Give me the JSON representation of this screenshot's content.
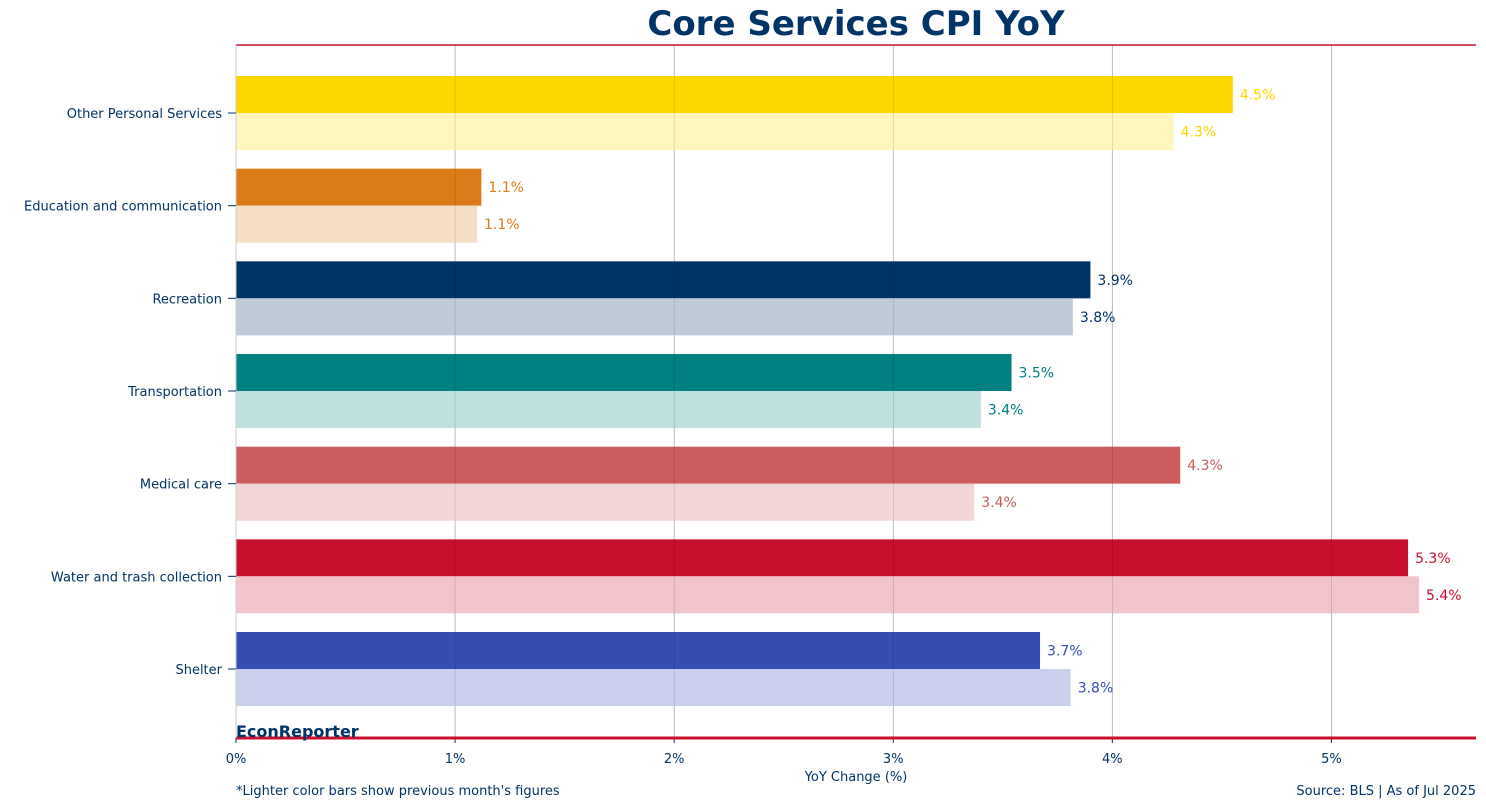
{
  "chart_data": {
    "type": "bar",
    "orientation": "horizontal",
    "title": "Core Services CPI YoY",
    "xlabel": "YoY Change (%)",
    "ylabel": "",
    "xlim": [
      0,
      5.66
    ],
    "x_ticks": [
      "0%",
      "1%",
      "2%",
      "3%",
      "4%",
      "5%"
    ],
    "grid": "vertical",
    "categories": [
      "Shelter",
      "Water and trash collection",
      "Medical care",
      "Transportation",
      "Recreation",
      "Education and communication",
      "Other Personal Services"
    ],
    "series": [
      {
        "role": "current",
        "values": [
          3.67,
          5.35,
          4.31,
          3.54,
          3.9,
          1.12,
          4.55
        ],
        "labels": [
          "3.7%",
          "5.3%",
          "4.3%",
          "3.5%",
          "3.9%",
          "1.1%",
          "4.5%"
        ]
      },
      {
        "role": "previous",
        "values": [
          3.81,
          5.4,
          3.37,
          3.4,
          3.82,
          1.1,
          4.28
        ],
        "labels": [
          "3.8%",
          "5.4%",
          "3.4%",
          "3.4%",
          "3.8%",
          "1.1%",
          "4.3%"
        ]
      }
    ],
    "colors": {
      "current": [
        "#344EB3",
        "#C8102E",
        "#CD5C5C",
        "#008080",
        "#003366",
        "#DB7A16",
        "#FFD700"
      ],
      "previous": [
        "#CACFEB",
        "#F1C3CA",
        "#F2D6D6",
        "#BFE0DF",
        "#BFCBD8",
        "#F5DEC4",
        "#FFF5BF"
      ]
    }
  },
  "branding": "EconReporter",
  "footnote": "*Lighter color bars show previous month's figures",
  "source": "Source: BLS | As of Jul 2025",
  "accent_color": "#C8102E",
  "text_color": "#003366"
}
